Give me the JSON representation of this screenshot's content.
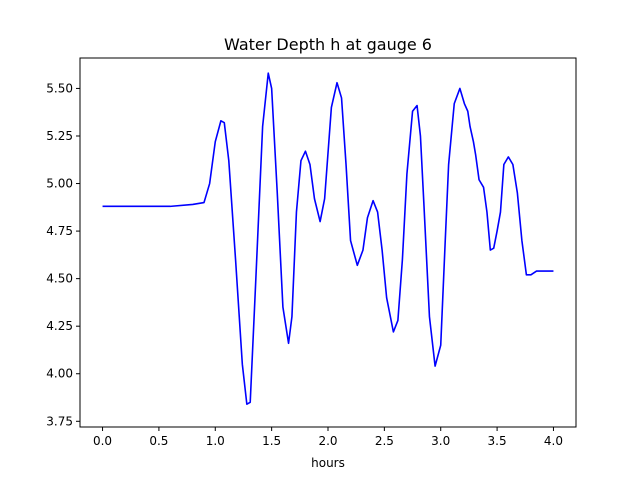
{
  "chart_data": {
    "type": "line",
    "title": "Water Depth h at gauge 6",
    "xlabel": "hours",
    "ylabel": "",
    "xlim": [
      -0.2,
      4.2
    ],
    "ylim": [
      3.72,
      5.66
    ],
    "xticks": [
      0.0,
      0.5,
      1.0,
      1.5,
      2.0,
      2.5,
      3.0,
      3.5,
      4.0
    ],
    "xtick_labels": [
      "0.0",
      "0.5",
      "1.0",
      "1.5",
      "2.0",
      "2.5",
      "3.0",
      "3.5",
      "4.0"
    ],
    "yticks": [
      3.75,
      4.0,
      4.25,
      4.5,
      4.75,
      5.0,
      5.25,
      5.5
    ],
    "ytick_labels": [
      "3.75",
      "4.00",
      "4.25",
      "4.50",
      "4.75",
      "5.00",
      "5.25",
      "5.50"
    ],
    "grid": false,
    "series": [
      {
        "color": "#0000ff",
        "x": [
          0.0,
          0.3,
          0.6,
          0.8,
          0.9,
          0.95,
          1.0,
          1.05,
          1.08,
          1.12,
          1.18,
          1.24,
          1.28,
          1.31,
          1.36,
          1.42,
          1.47,
          1.5,
          1.55,
          1.6,
          1.65,
          1.68,
          1.72,
          1.76,
          1.8,
          1.84,
          1.88,
          1.93,
          1.97,
          2.03,
          2.08,
          2.12,
          2.16,
          2.2,
          2.26,
          2.31,
          2.35,
          2.4,
          2.44,
          2.48,
          2.52,
          2.58,
          2.62,
          2.66,
          2.7,
          2.75,
          2.79,
          2.82,
          2.85,
          2.9,
          2.95,
          3.0,
          3.04,
          3.07,
          3.12,
          3.17,
          3.21,
          3.24,
          3.26,
          3.29,
          3.31,
          3.34,
          3.38,
          3.41,
          3.44,
          3.47,
          3.5,
          3.53,
          3.56,
          3.6,
          3.64,
          3.68,
          3.72,
          3.76,
          3.8,
          3.85,
          3.9,
          3.95,
          3.98,
          4.0
        ],
        "y": [
          4.88,
          4.88,
          4.88,
          4.89,
          4.9,
          5.0,
          5.22,
          5.33,
          5.32,
          5.12,
          4.6,
          4.05,
          3.84,
          3.85,
          4.5,
          5.3,
          5.58,
          5.5,
          4.95,
          4.35,
          4.16,
          4.3,
          4.85,
          5.12,
          5.17,
          5.1,
          4.92,
          4.8,
          4.92,
          5.4,
          5.53,
          5.45,
          5.1,
          4.7,
          4.57,
          4.65,
          4.82,
          4.91,
          4.85,
          4.65,
          4.4,
          4.22,
          4.28,
          4.6,
          5.05,
          5.38,
          5.41,
          5.25,
          4.9,
          4.3,
          4.04,
          4.15,
          4.7,
          5.1,
          5.42,
          5.5,
          5.42,
          5.38,
          5.3,
          5.22,
          5.15,
          5.02,
          4.98,
          4.85,
          4.65,
          4.66,
          4.75,
          4.85,
          5.1,
          5.14,
          5.1,
          4.95,
          4.7,
          4.52,
          4.52,
          4.54,
          4.54,
          4.54,
          4.54,
          4.54
        ]
      }
    ]
  }
}
